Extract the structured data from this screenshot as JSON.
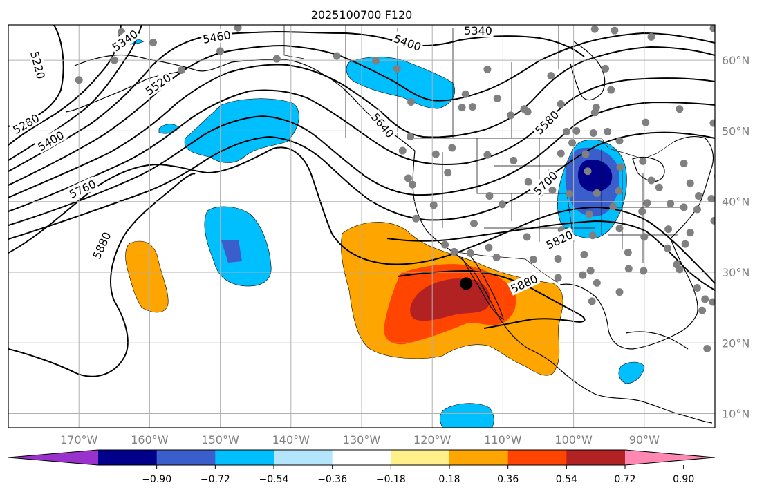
{
  "title": "2025100700 F120",
  "map": {
    "projection": "plate-carree",
    "lon_range": [
      -180,
      -80
    ],
    "lat_range": [
      8,
      65
    ],
    "gridlines": true,
    "lon_ticks": [
      {
        "value": -170,
        "label": "170°W"
      },
      {
        "value": -160,
        "label": "160°W"
      },
      {
        "value": -150,
        "label": "150°W"
      },
      {
        "value": -140,
        "label": "140°W"
      },
      {
        "value": -130,
        "label": "130°W"
      },
      {
        "value": -120,
        "label": "120°W"
      },
      {
        "value": -110,
        "label": "110°W"
      },
      {
        "value": -100,
        "label": "100°W"
      },
      {
        "value": -90,
        "label": "90°W"
      }
    ],
    "lat_ticks": [
      {
        "value": 10,
        "label": "10°N"
      },
      {
        "value": 20,
        "label": "20°N"
      },
      {
        "value": 30,
        "label": "30°N"
      },
      {
        "value": 40,
        "label": "40°N"
      },
      {
        "value": 50,
        "label": "50°N"
      },
      {
        "value": 60,
        "label": "60°N"
      }
    ],
    "contour_labels": [
      {
        "text": "5340",
        "lon": -163.5,
        "lat": 62.8,
        "rot": -35
      },
      {
        "text": "5460",
        "lon": -150.5,
        "lat": 63.3,
        "rot": -10
      },
      {
        "text": "5400",
        "lon": -123.5,
        "lat": 62.5,
        "rot": 20
      },
      {
        "text": "5340",
        "lon": -113.5,
        "lat": 64.2,
        "rot": 0
      },
      {
        "text": "5220",
        "lon": -175.8,
        "lat": 59.3,
        "rot": 75
      },
      {
        "text": "5520",
        "lon": -158.8,
        "lat": 56.6,
        "rot": -35
      },
      {
        "text": "5280",
        "lon": -177.5,
        "lat": 51.0,
        "rot": -30
      },
      {
        "text": "5400",
        "lon": -174.0,
        "lat": 48.6,
        "rot": -30
      },
      {
        "text": "5640",
        "lon": -127.0,
        "lat": 50.8,
        "rot": 50
      },
      {
        "text": "5580",
        "lon": -103.8,
        "lat": 51.2,
        "rot": -45
      },
      {
        "text": "5760",
        "lon": -169.5,
        "lat": 41.8,
        "rot": -25
      },
      {
        "text": "5700",
        "lon": -104.0,
        "lat": 42.6,
        "rot": -45
      },
      {
        "text": "5880",
        "lon": -166.8,
        "lat": 33.8,
        "rot": -65
      },
      {
        "text": "5820",
        "lon": -102.0,
        "lat": 34.6,
        "rot": -25
      },
      {
        "text": "5880",
        "lon": -107.0,
        "lat": 28.4,
        "rot": -25
      }
    ],
    "marker": {
      "name": "center-dot",
      "lon": -115.2,
      "lat": 28.4
    },
    "station_dots": [
      [
        -164,
        64
      ],
      [
        -165,
        60
      ],
      [
        -170,
        57.2
      ],
      [
        -150,
        61.3
      ],
      [
        -159.5,
        62.5
      ],
      [
        -155.5,
        58.6
      ],
      [
        -147.5,
        64.6
      ],
      [
        -142,
        60.2
      ],
      [
        -133.5,
        60.6
      ],
      [
        -128,
        59.9
      ],
      [
        -125,
        58.8
      ],
      [
        -123,
        54.1
      ],
      [
        -115.3,
        55.2
      ],
      [
        -115.8,
        53.3
      ],
      [
        -114.3,
        53.4
      ],
      [
        -112.2,
        58.7
      ],
      [
        -108.9,
        52.2
      ],
      [
        -110.8,
        54.6
      ],
      [
        -107,
        53.1
      ],
      [
        -106.5,
        52.7
      ],
      [
        -101.8,
        53.8
      ],
      [
        -101,
        49.9
      ],
      [
        -99.6,
        50.0
      ],
      [
        -97.2,
        49.7
      ],
      [
        -95.2,
        49.9
      ],
      [
        -94.7,
        55.8
      ],
      [
        -96.8,
        53.3
      ],
      [
        -97,
        52.6
      ],
      [
        -93.5,
        48.6
      ],
      [
        -89.8,
        51.2
      ],
      [
        -85,
        53.1
      ],
      [
        -95.5,
        58.8
      ],
      [
        -94.2,
        64.2
      ],
      [
        -97,
        64.4
      ],
      [
        -89,
        63.3
      ],
      [
        -103.2,
        57.8
      ],
      [
        -80.2,
        64.5
      ],
      [
        -80.2,
        51.1
      ],
      [
        -124.2,
        47.2
      ],
      [
        -123.1,
        49.2
      ],
      [
        -122.8,
        42.4
      ],
      [
        -123.4,
        43.3
      ],
      [
        -119.5,
        46.7
      ],
      [
        -117.2,
        47.6
      ],
      [
        -112.2,
        46.6
      ],
      [
        -108.5,
        45.8
      ],
      [
        -104.8,
        41.2
      ],
      [
        -106.4,
        42.8
      ],
      [
        -117.8,
        44.1
      ],
      [
        -119.8,
        39.5
      ],
      [
        -122.3,
        37.6
      ],
      [
        -118.2,
        33.9
      ],
      [
        -116.9,
        32.9
      ],
      [
        -114.6,
        32.7
      ],
      [
        -112,
        33.5
      ],
      [
        -110.9,
        32.1
      ],
      [
        -106.6,
        35
      ],
      [
        -105.7,
        31.8
      ],
      [
        -110.1,
        39.6
      ],
      [
        -111.9,
        40.8
      ],
      [
        -114.1,
        36.9
      ],
      [
        -103,
        41.6
      ],
      [
        -100.6,
        41.1
      ],
      [
        -103.2,
        44.1
      ],
      [
        -101.7,
        36
      ],
      [
        -102.2,
        31.9
      ],
      [
        -98.5,
        32.5
      ],
      [
        -97.6,
        30.2
      ],
      [
        -96.7,
        28.5
      ],
      [
        -97.4,
        25.9
      ],
      [
        -98.7,
        29.6
      ],
      [
        -102.2,
        29.2
      ],
      [
        -106.1,
        28.6
      ],
      [
        -100.2,
        48.3
      ],
      [
        -101.8,
        46.8
      ],
      [
        -98.3,
        46.7
      ],
      [
        -98,
        44.3
      ],
      [
        -96.7,
        41.2
      ],
      [
        -97.8,
        38.2
      ],
      [
        -93.5,
        36.2
      ],
      [
        -97.3,
        35.2
      ],
      [
        -94.4,
        39.3
      ],
      [
        -93.6,
        41.5
      ],
      [
        -93.4,
        44.9
      ],
      [
        -90.2,
        45.7
      ],
      [
        -89,
        43
      ],
      [
        -87.9,
        42
      ],
      [
        -86.3,
        39.7
      ],
      [
        -89.6,
        39.8
      ],
      [
        -90.3,
        38.6
      ],
      [
        -86.6,
        36.1
      ],
      [
        -90,
        35
      ],
      [
        -92.3,
        32.8
      ],
      [
        -90.1,
        30.2
      ],
      [
        -92.2,
        30.5
      ],
      [
        -93.5,
        27.2
      ],
      [
        -83.5,
        42.6
      ],
      [
        -84.4,
        45.4
      ],
      [
        -82.5,
        38.9
      ],
      [
        -84.2,
        34
      ],
      [
        -86.7,
        33.4
      ],
      [
        -85,
        30.4
      ],
      [
        -82.5,
        27.8
      ],
      [
        -81.4,
        26.2
      ],
      [
        -80.3,
        25.8
      ],
      [
        -84.4,
        39.2
      ],
      [
        -82.3,
        40.8
      ],
      [
        -80.1,
        37.3
      ],
      [
        -81.8,
        24.6
      ],
      [
        -83.5,
        35.6
      ],
      [
        -85.4,
        31.1
      ],
      [
        -79.6,
        43.6
      ],
      [
        -80.5,
        40.4
      ],
      [
        -81.1,
        19.2
      ]
    ],
    "colorbar": {
      "colors": [
        "#9932cc",
        "#00008b",
        "#3a5fcd",
        "#00bfff",
        "#b3e5fc",
        "#ffffff",
        "#fff08a",
        "#ffa500",
        "#ff4500",
        "#b22222",
        "#ff88b3"
      ],
      "levels": [
        "−0.90",
        "−0.72",
        "−0.54",
        "−0.36",
        "−0.18",
        "0.18",
        "0.36",
        "0.54",
        "0.72",
        "0.90"
      ]
    }
  }
}
